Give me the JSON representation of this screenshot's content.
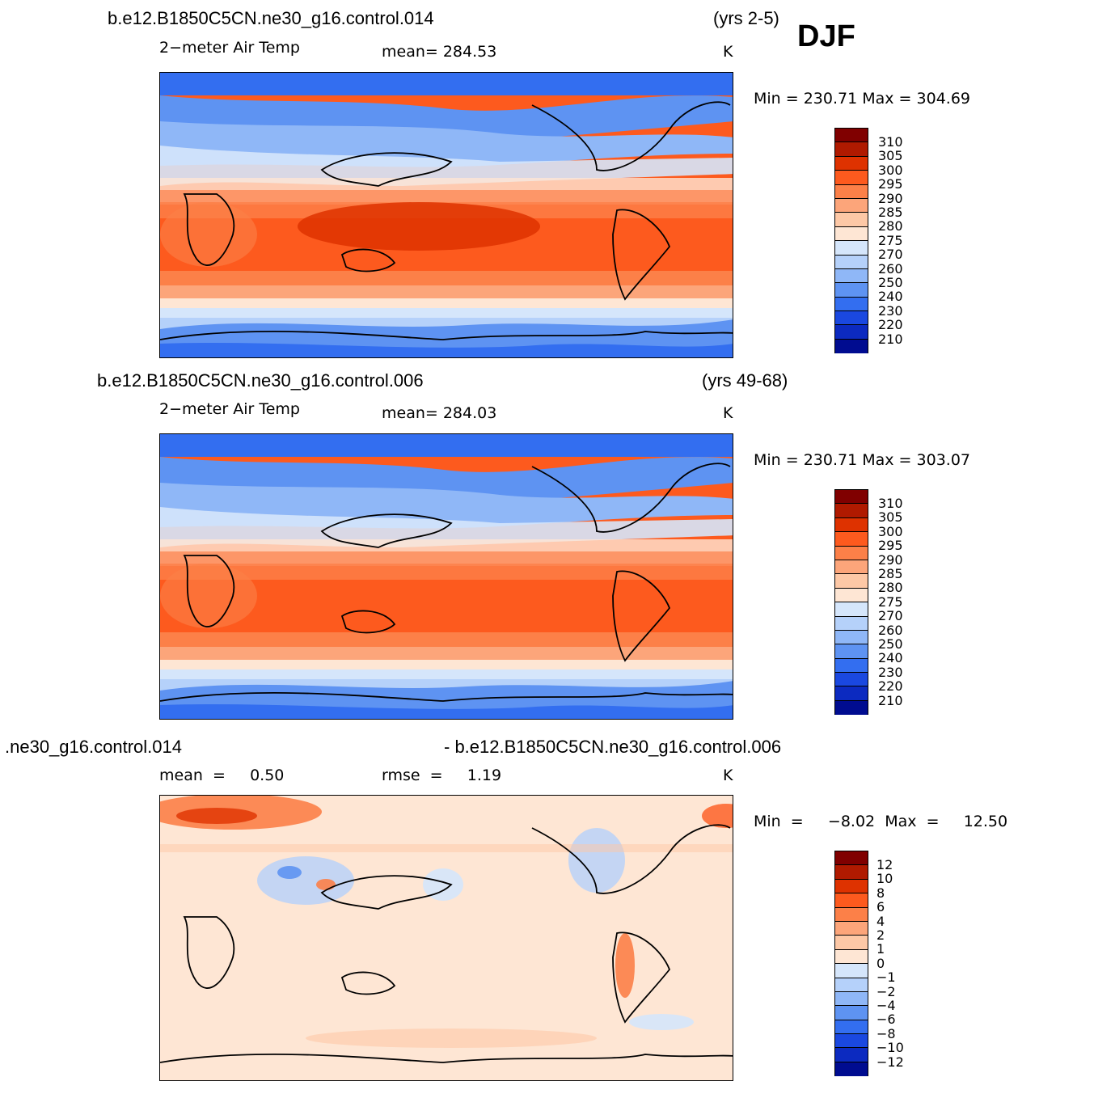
{
  "season": "DJF",
  "panels": [
    {
      "id": "p1",
      "case": "b.e12.B1850C5CN.ne30_g16.control.014",
      "years": "(yrs 2-5)",
      "variable": "2−meter Air Temp",
      "mean_label": "mean= 284.53",
      "units": "K",
      "minmax": "Min  =  230.71  Max  =  304.69",
      "colorbar_labels": [
        "310",
        "305",
        "300",
        "295",
        "290",
        "285",
        "280",
        "275",
        "270",
        "260",
        "250",
        "240",
        "230",
        "220",
        "210"
      ]
    },
    {
      "id": "p2",
      "case": "b.e12.B1850C5CN.ne30_g16.control.006",
      "years": "(yrs 49-68)",
      "variable": "2−meter Air Temp",
      "mean_label": "mean= 284.03",
      "units": "K",
      "minmax": "Min  =  230.71  Max  =  303.07",
      "colorbar_labels": [
        "310",
        "305",
        "300",
        "295",
        "290",
        "285",
        "280",
        "275",
        "270",
        "260",
        "250",
        "240",
        "230",
        "220",
        "210"
      ]
    },
    {
      "id": "p3",
      "case_left": ".ne30_g16.control.014",
      "case_right": "- b.e12.B1850C5CN.ne30_g16.control.006",
      "mean_label": "mean  =     0.50",
      "rmse_label": "rmse  =     1.19",
      "units": "K",
      "minmax": "Min  =     −8.02  Max  =     12.50",
      "colorbar_labels": [
        "12",
        "10",
        "8",
        "6",
        "4",
        "2",
        "1",
        "0",
        "−1",
        "−2",
        "−4",
        "−6",
        "−8",
        "−10",
        "−12"
      ]
    }
  ],
  "colors": {
    "temp_scale": [
      "#800000",
      "#b01a00",
      "#de3200",
      "#fd5a1e",
      "#fc8048",
      "#fca57a",
      "#fdc8a6",
      "#fee6d4",
      "#d5e6fb",
      "#b5d1fa",
      "#8fb7f7",
      "#5e93f2",
      "#336ef0",
      "#1a48e0",
      "#0c2ac0",
      "#000c90"
    ],
    "diff_scale": [
      "#800000",
      "#b01a00",
      "#de3200",
      "#fd5a1e",
      "#fc8048",
      "#fca57a",
      "#fdc8a6",
      "#fee6d4",
      "#d5e6fb",
      "#b5d1fa",
      "#8fb7f7",
      "#5e93f2",
      "#336ef0",
      "#1a48e0",
      "#0c2ac0",
      "#000c90"
    ]
  }
}
